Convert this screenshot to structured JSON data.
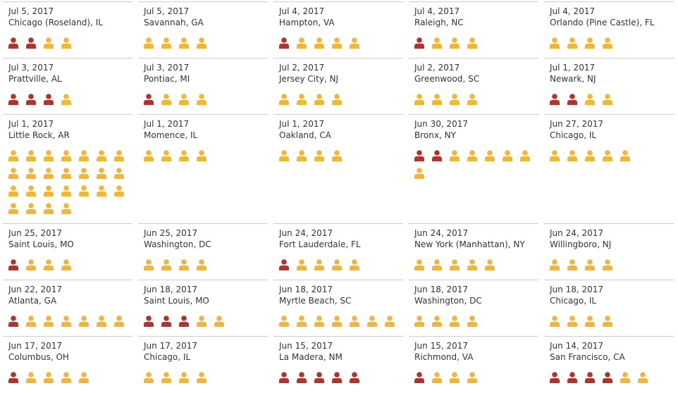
{
  "incidents": [
    {
      "date": "Jul 5, 2017",
      "place": "Chicago (Roseland), IL",
      "killed": 2,
      "injured": 2
    },
    {
      "date": "Jul 5, 2017",
      "place": "Savannah, GA",
      "killed": 0,
      "injured": 4
    },
    {
      "date": "Jul 4, 2017",
      "place": "Hampton, VA",
      "killed": 1,
      "injured": 4
    },
    {
      "date": "Jul 4, 2017",
      "place": "Raleigh, NC",
      "killed": 1,
      "injured": 3
    },
    {
      "date": "Jul 4, 2017",
      "place": "Orlando (Pine Castle), FL",
      "killed": 0,
      "injured": 4
    },
    {
      "date": "Jul 3, 2017",
      "place": "Prattville, AL",
      "killed": 3,
      "injured": 1
    },
    {
      "date": "Jul 3, 2017",
      "place": "Pontiac, MI",
      "killed": 1,
      "injured": 3
    },
    {
      "date": "Jul 2, 2017",
      "place": "Jersey City, NJ",
      "killed": 0,
      "injured": 4
    },
    {
      "date": "Jul 2, 2017",
      "place": "Greenwood, SC",
      "killed": 0,
      "injured": 4
    },
    {
      "date": "Jul 1, 2017",
      "place": "Newark, NJ",
      "killed": 2,
      "injured": 2
    },
    {
      "date": "Jul 1, 2017",
      "place": "Little Rock, AR",
      "killed": 0,
      "injured": 25
    },
    {
      "date": "Jul 1, 2017",
      "place": "Momence, IL",
      "killed": 0,
      "injured": 4
    },
    {
      "date": "Jul 1, 2017",
      "place": "Oakland, CA",
      "killed": 0,
      "injured": 4
    },
    {
      "date": "Jun 30, 2017",
      "place": "Bronx, NY",
      "killed": 2,
      "injured": 6
    },
    {
      "date": "Jun 27, 2017",
      "place": "Chicago, IL",
      "killed": 0,
      "injured": 5
    },
    {
      "date": "Jun 25, 2017",
      "place": "Saint Louis, MO",
      "killed": 1,
      "injured": 3
    },
    {
      "date": "Jun 25, 2017",
      "place": "Washington, DC",
      "killed": 0,
      "injured": 4
    },
    {
      "date": "Jun 24, 2017",
      "place": "Fort Lauderdale, FL",
      "killed": 1,
      "injured": 4
    },
    {
      "date": "Jun 24, 2017",
      "place": "New York (Manhattan), NY",
      "killed": 0,
      "injured": 5
    },
    {
      "date": "Jun 24, 2017",
      "place": "Willingboro, NJ",
      "killed": 0,
      "injured": 4
    },
    {
      "date": "Jun 22, 2017",
      "place": "Atlanta, GA",
      "killed": 1,
      "injured": 6
    },
    {
      "date": "Jun 18, 2017",
      "place": "Saint Louis, MO",
      "killed": 3,
      "injured": 2
    },
    {
      "date": "Jun 18, 2017",
      "place": "Myrtle Beach, SC",
      "killed": 0,
      "injured": 7
    },
    {
      "date": "Jun 18, 2017",
      "place": "Washington, DC",
      "killed": 0,
      "injured": 4
    },
    {
      "date": "Jun 18, 2017",
      "place": "Chicago, IL",
      "killed": 0,
      "injured": 4
    },
    {
      "date": "Jun 17, 2017",
      "place": "Columbus, OH",
      "killed": 1,
      "injured": 4
    },
    {
      "date": "Jun 17, 2017",
      "place": "Chicago, IL",
      "killed": 0,
      "injured": 4
    },
    {
      "date": "Jun 15, 2017",
      "place": "La Madera, NM",
      "killed": 5,
      "injured": 0
    },
    {
      "date": "Jun 15, 2017",
      "place": "Richmond, VA",
      "killed": 1,
      "injured": 3
    },
    {
      "date": "Jun 14, 2017",
      "place": "San Francisco, CA",
      "killed": 4,
      "injured": 2
    }
  ]
}
